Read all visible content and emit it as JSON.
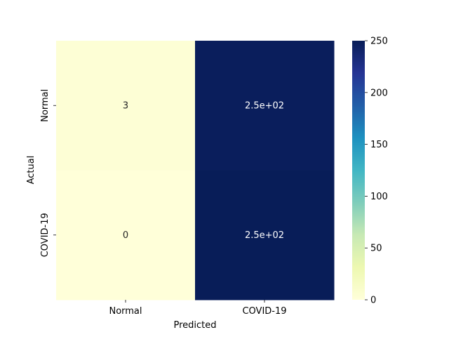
{
  "chart_data": {
    "type": "heatmap",
    "title": "",
    "xlabel": "Predicted",
    "ylabel": "Actual",
    "x_categories": [
      "Normal",
      "COVID-19"
    ],
    "y_categories": [
      "Normal",
      "COVID-19"
    ],
    "values": [
      [
        3,
        248
      ],
      [
        0,
        251
      ]
    ],
    "annotations": [
      [
        "3",
        "2.5e+02"
      ],
      [
        "0",
        "2.5e+02"
      ]
    ],
    "colormap": "YlGnBu",
    "colorbar": {
      "range": [
        0,
        250
      ],
      "ticks": [
        "0",
        "50",
        "100",
        "150",
        "200",
        "250"
      ]
    }
  }
}
